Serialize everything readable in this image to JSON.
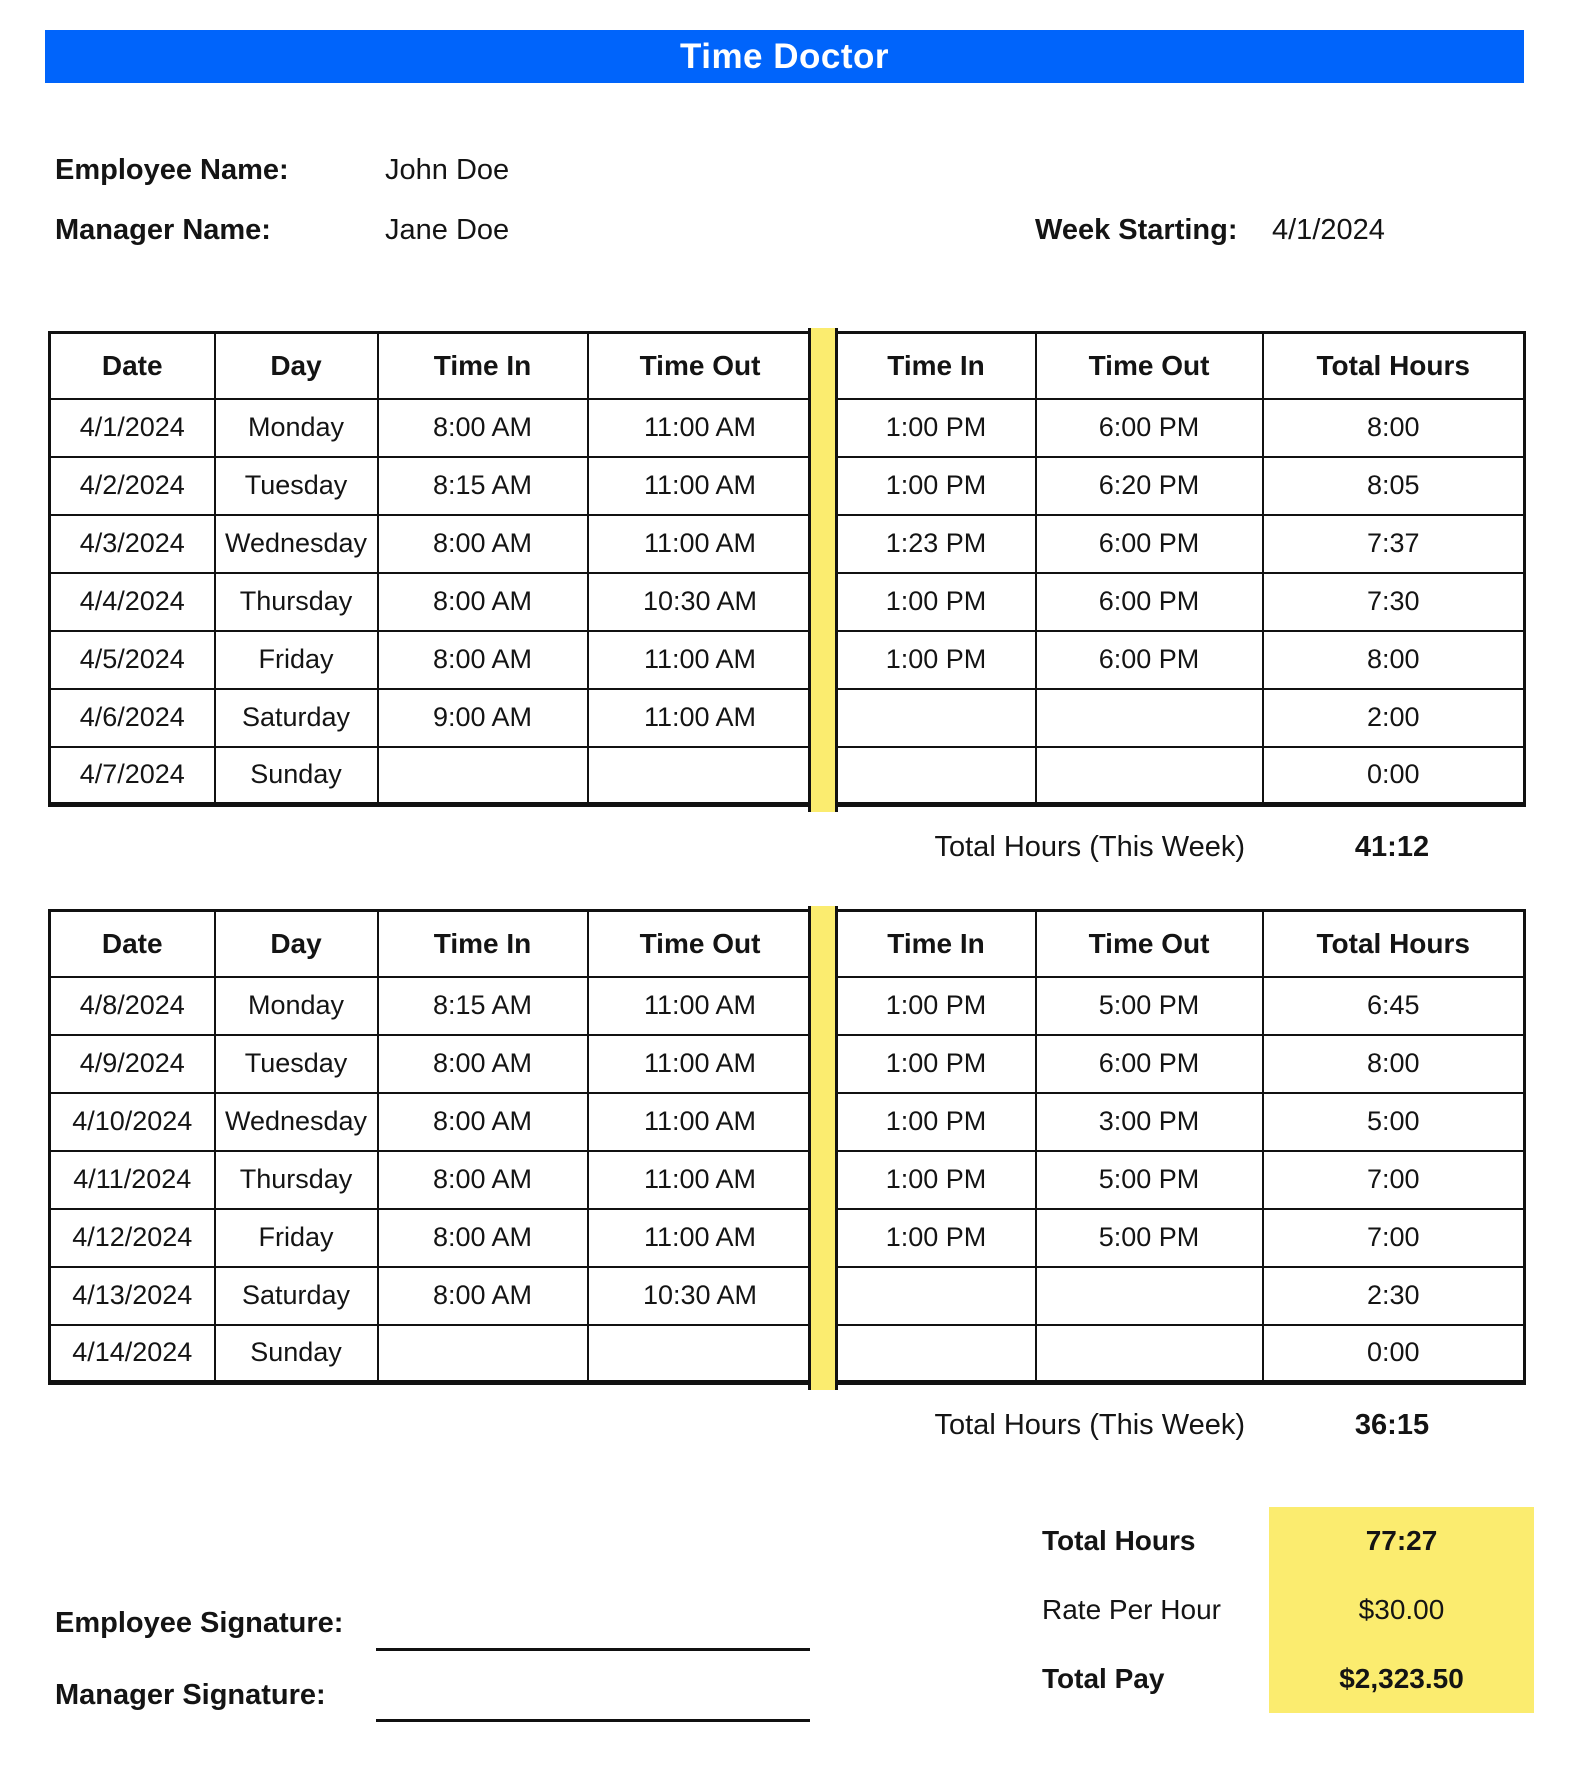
{
  "title": "Time Doctor",
  "colors": {
    "accent_blue": "#0064FB",
    "accent_yellow": "#FBEC6F",
    "border_black": "#111111"
  },
  "info": {
    "employee_label": "Employee Name:",
    "employee_name": "John Doe",
    "manager_label": "Manager Name:",
    "manager_name": "Jane Doe",
    "week_label": "Week Starting:",
    "week_value": "4/1/2024"
  },
  "table_headers": [
    "Date",
    "Day",
    "Time In",
    "Time Out",
    "Time In",
    "Time Out",
    "Total Hours"
  ],
  "weeks": [
    {
      "rows": [
        {
          "date": "4/1/2024",
          "day": "Monday",
          "am_in": "8:00 AM",
          "am_out": "11:00 AM",
          "pm_in": "1:00 PM",
          "pm_out": "6:00 PM",
          "total": "8:00"
        },
        {
          "date": "4/2/2024",
          "day": "Tuesday",
          "am_in": "8:15 AM",
          "am_out": "11:00 AM",
          "pm_in": "1:00 PM",
          "pm_out": "6:20 PM",
          "total": "8:05"
        },
        {
          "date": "4/3/2024",
          "day": "Wednesday",
          "am_in": "8:00 AM",
          "am_out": "11:00 AM",
          "pm_in": "1:23 PM",
          "pm_out": "6:00 PM",
          "total": "7:37"
        },
        {
          "date": "4/4/2024",
          "day": "Thursday",
          "am_in": "8:00 AM",
          "am_out": "10:30 AM",
          "pm_in": "1:00 PM",
          "pm_out": "6:00 PM",
          "total": "7:30"
        },
        {
          "date": "4/5/2024",
          "day": "Friday",
          "am_in": "8:00 AM",
          "am_out": "11:00 AM",
          "pm_in": "1:00 PM",
          "pm_out": "6:00 PM",
          "total": "8:00"
        },
        {
          "date": "4/6/2024",
          "day": "Saturday",
          "am_in": "9:00 AM",
          "am_out": "11:00 AM",
          "pm_in": "",
          "pm_out": "",
          "total": "2:00"
        },
        {
          "date": "4/7/2024",
          "day": "Sunday",
          "am_in": "",
          "am_out": "",
          "pm_in": "",
          "pm_out": "",
          "total": "0:00"
        }
      ],
      "total_label": "Total Hours (This Week)",
      "total_value": "41:12"
    },
    {
      "rows": [
        {
          "date": "4/8/2024",
          "day": "Monday",
          "am_in": "8:15 AM",
          "am_out": "11:00 AM",
          "pm_in": "1:00 PM",
          "pm_out": "5:00 PM",
          "total": "6:45"
        },
        {
          "date": "4/9/2024",
          "day": "Tuesday",
          "am_in": "8:00 AM",
          "am_out": "11:00 AM",
          "pm_in": "1:00 PM",
          "pm_out": "6:00 PM",
          "total": "8:00"
        },
        {
          "date": "4/10/2024",
          "day": "Wednesday",
          "am_in": "8:00 AM",
          "am_out": "11:00 AM",
          "pm_in": "1:00 PM",
          "pm_out": "3:00 PM",
          "total": "5:00"
        },
        {
          "date": "4/11/2024",
          "day": "Thursday",
          "am_in": "8:00 AM",
          "am_out": "11:00 AM",
          "pm_in": "1:00 PM",
          "pm_out": "5:00 PM",
          "total": "7:00"
        },
        {
          "date": "4/12/2024",
          "day": "Friday",
          "am_in": "8:00 AM",
          "am_out": "11:00 AM",
          "pm_in": "1:00 PM",
          "pm_out": "5:00 PM",
          "total": "7:00"
        },
        {
          "date": "4/13/2024",
          "day": "Saturday",
          "am_in": "8:00 AM",
          "am_out": "10:30 AM",
          "pm_in": "",
          "pm_out": "",
          "total": "2:30"
        },
        {
          "date": "4/14/2024",
          "day": "Sunday",
          "am_in": "",
          "am_out": "",
          "pm_in": "",
          "pm_out": "",
          "total": "0:00"
        }
      ],
      "total_label": "Total Hours (This Week)",
      "total_value": "36:15"
    }
  ],
  "summary": {
    "rows": [
      {
        "label": "Total Hours",
        "value": "77:27"
      },
      {
        "label": "Rate Per Hour",
        "value": "$30.00"
      },
      {
        "label": "Total Pay",
        "value": "$2,323.50"
      }
    ]
  },
  "signatures": {
    "employee_label": "Employee Signature:",
    "manager_label": "Manager Signature:"
  }
}
